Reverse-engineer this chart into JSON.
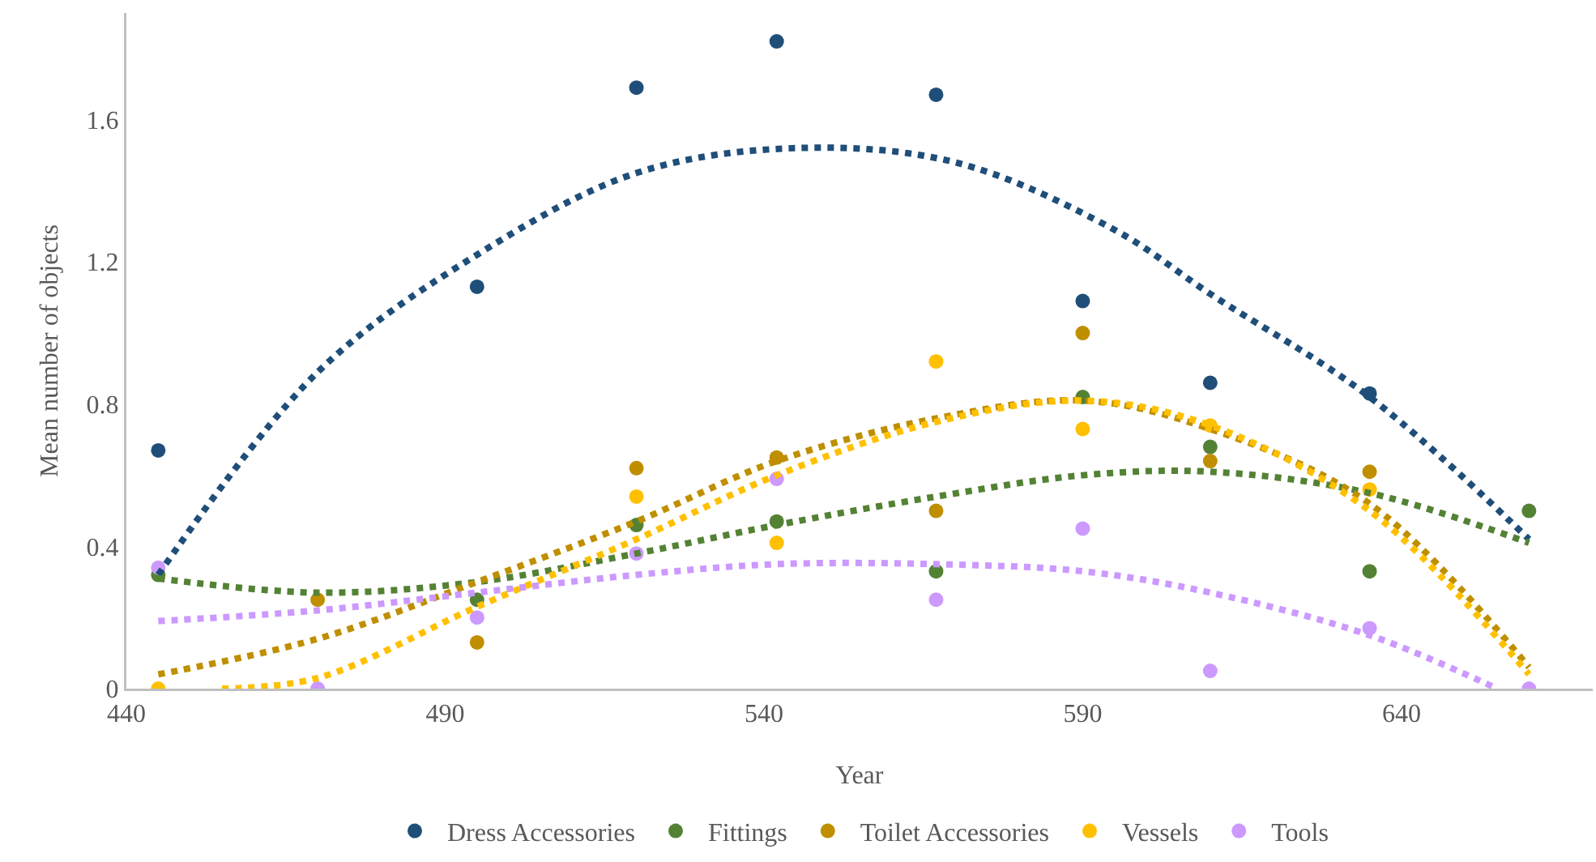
{
  "chart_data": {
    "type": "scatter",
    "xlabel": "Year",
    "ylabel": "Mean number of objects",
    "x": [
      445,
      470,
      495,
      520,
      542,
      567,
      590,
      610,
      635,
      660
    ],
    "xlim": [
      440,
      670
    ],
    "xticks": [
      440,
      490,
      540,
      590,
      640
    ],
    "ylim": [
      0,
      1.9
    ],
    "yticks": [
      0,
      0.4,
      0.8,
      1.2,
      1.6
    ],
    "grid": false,
    "legend": "bottom",
    "marker": "circle",
    "series": [
      {
        "name": "Dress Accessories",
        "color": "#1f4e79",
        "values": [
          0.67,
          null,
          1.13,
          1.69,
          1.82,
          1.67,
          1.09,
          0.86,
          0.83,
          null
        ]
      },
      {
        "name": "Fittings",
        "color": "#548235",
        "values": [
          0.32,
          null,
          0.25,
          0.46,
          0.47,
          0.33,
          0.82,
          0.68,
          0.33,
          0.5
        ]
      },
      {
        "name": "Toilet Accessories",
        "color": "#bf8f00",
        "values": [
          null,
          0.25,
          0.13,
          0.62,
          0.65,
          0.5,
          1.0,
          0.64,
          0.61,
          null
        ]
      },
      {
        "name": "Vessels",
        "color": "#ffc000",
        "values": [
          0,
          null,
          null,
          0.54,
          0.41,
          0.92,
          0.73,
          0.74,
          0.56,
          null
        ]
      },
      {
        "name": "Tools",
        "color": "#cc99ff",
        "values": [
          0.34,
          0,
          0.2,
          0.38,
          0.59,
          0.25,
          0.45,
          0.05,
          0.17,
          0
        ]
      },
      {
        "type": "line",
        "marker": "none",
        "line_style": "dotted",
        "color": "#1f4e79",
        "x": [
          445,
          470,
          495,
          520,
          545,
          570,
          595,
          610,
          635,
          660
        ],
        "values": [
          0.32,
          0.89,
          1.22,
          1.45,
          1.52,
          1.48,
          1.29,
          1.11,
          0.82,
          0.42
        ]
      },
      {
        "type": "line",
        "marker": "none",
        "line_style": "dotted",
        "color": "#548235",
        "x": [
          445,
          470,
          495,
          520,
          542,
          567,
          590,
          610,
          635,
          660
        ],
        "values": [
          0.31,
          0.27,
          0.3,
          0.38,
          0.46,
          0.54,
          0.6,
          0.61,
          0.55,
          0.41
        ]
      },
      {
        "type": "line",
        "marker": "none",
        "line_style": "dotted",
        "color": "#bf8f00",
        "x": [
          445,
          470,
          495,
          520,
          542,
          567,
          590,
          610,
          635,
          660
        ],
        "values": [
          0.04,
          0.14,
          0.3,
          0.47,
          0.64,
          0.76,
          0.81,
          0.73,
          0.52,
          0.06
        ]
      },
      {
        "type": "line",
        "marker": "none",
        "line_style": "dotted",
        "color": "#ffc000",
        "x": [
          455,
          470,
          495,
          520,
          542,
          567,
          590,
          610,
          635,
          660
        ],
        "values": [
          0,
          0.03,
          0.23,
          0.42,
          0.6,
          0.75,
          0.81,
          0.74,
          0.5,
          0.04
        ]
      },
      {
        "type": "line",
        "marker": "none",
        "line_style": "dotted",
        "color": "#cc99ff",
        "x": [
          445,
          470,
          495,
          520,
          542,
          567,
          590,
          610,
          635,
          655
        ],
        "values": [
          0.19,
          0.22,
          0.27,
          0.32,
          0.35,
          0.35,
          0.33,
          0.27,
          0.15,
          0
        ]
      }
    ]
  }
}
